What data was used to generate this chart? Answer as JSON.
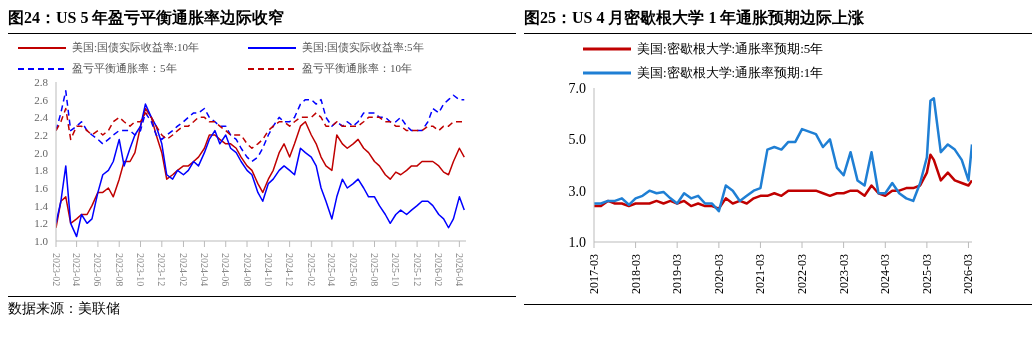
{
  "chart_data": [
    {
      "type": "line",
      "title": "图24：US 5 年盈亏平衡通胀率边际收窄",
      "legend": "top",
      "x": [
        "2023-02-01",
        "2023-02-15",
        "2023-03-01",
        "2023-03-15",
        "2023-04-01",
        "2023-04-15",
        "2023-05-01",
        "2023-05-15",
        "2023-06-01",
        "2023-06-15",
        "2023-07-01",
        "2023-07-15",
        "2023-08-01",
        "2023-08-15",
        "2023-09-01",
        "2023-09-15",
        "2023-10-01",
        "2023-10-15",
        "2023-11-01",
        "2023-11-15",
        "2023-12-01",
        "2023-12-15",
        "2024-01-01",
        "2024-01-15",
        "2024-02-01",
        "2024-02-15",
        "2024-03-01",
        "2024-03-15",
        "2024-04-01",
        "2024-04-15",
        "2024-05-01",
        "2024-05-15",
        "2024-06-01",
        "2024-06-15",
        "2024-07-01",
        "2024-07-15",
        "2024-08-01",
        "2024-08-15",
        "2024-09-01",
        "2024-09-15",
        "2024-10-01",
        "2024-10-15",
        "2024-11-01",
        "2024-11-15",
        "2024-12-01",
        "2024-12-15",
        "2025-01-01",
        "2025-01-15",
        "2025-02-01",
        "2025-02-15",
        "2025-03-01",
        "2025-03-15",
        "2025-04-01",
        "2025-04-15",
        "2025-05-01",
        "2025-05-15",
        "2025-06-01",
        "2025-06-15",
        "2025-07-01",
        "2025-07-15",
        "2025-08-01",
        "2025-08-15",
        "2025-09-01",
        "2025-09-15",
        "2025-10-01",
        "2025-10-15",
        "2025-11-01",
        "2025-11-15",
        "2025-12-01",
        "2025-12-15",
        "2026-01-01",
        "2026-01-15",
        "2026-02-01",
        "2026-02-15",
        "2026-03-01",
        "2026-03-15",
        "2026-04-01",
        "2026-04-15"
      ],
      "xlim": [
        "2023-02-01",
        "2026-04-20"
      ],
      "xticks": [
        {
          "value": "2023-02-01",
          "label": "2023-02"
        },
        {
          "value": "2023-04-01",
          "label": "2023-04"
        },
        {
          "value": "2023-06-01",
          "label": "2023-06"
        },
        {
          "value": "2023-08-01",
          "label": "2023-08"
        },
        {
          "value": "2023-10-01",
          "label": "2023-10"
        },
        {
          "value": "2023-12-01",
          "label": "2023-12"
        },
        {
          "value": "2024-02-01",
          "label": "2024-02"
        },
        {
          "value": "2024-04-01",
          "label": "2024-04"
        },
        {
          "value": "2024-06-01",
          "label": "2024-06"
        },
        {
          "value": "2024-08-01",
          "label": "2024-08"
        },
        {
          "value": "2024-10-01",
          "label": "2024-10"
        },
        {
          "value": "2024-12-01",
          "label": "2024-12"
        },
        {
          "value": "2025-02-01",
          "label": "2025-02"
        },
        {
          "value": "2025-04-01",
          "label": "2025-04"
        },
        {
          "value": "2025-06-01",
          "label": "2025-06"
        },
        {
          "value": "2025-08-01",
          "label": "2025-08"
        },
        {
          "value": "2025-10-01",
          "label": "2025-10"
        },
        {
          "value": "2025-12-01",
          "label": "2025-12"
        },
        {
          "value": "2026-02-01",
          "label": "2026-02"
        },
        {
          "value": "2026-04-01",
          "label": "2026-04"
        }
      ],
      "ylim": [
        1.0,
        2.8
      ],
      "yticks": [
        {
          "value": 1.0,
          "label": "1.0"
        },
        {
          "value": 1.2,
          "label": "1.2"
        },
        {
          "value": 1.4,
          "label": "1.4"
        },
        {
          "value": 1.6,
          "label": "1.6"
        },
        {
          "value": 1.8,
          "label": "1.8"
        },
        {
          "value": 2.0,
          "label": "2.0"
        },
        {
          "value": 2.2,
          "label": "2.2"
        },
        {
          "value": 2.4,
          "label": "2.4"
        },
        {
          "value": 2.6,
          "label": "2.6"
        },
        {
          "value": 2.8,
          "label": "2.8"
        }
      ],
      "series": [
        {
          "name": "美国:国债实际收益率:10年",
          "color": "#c00000",
          "line_style": "solid",
          "values": [
            1.15,
            1.45,
            1.5,
            1.2,
            1.25,
            1.3,
            1.3,
            1.4,
            1.55,
            1.55,
            1.6,
            1.5,
            1.7,
            1.9,
            1.9,
            2.0,
            2.3,
            2.5,
            2.4,
            2.2,
            2.0,
            1.7,
            1.75,
            1.8,
            1.85,
            1.85,
            1.9,
            1.95,
            2.05,
            2.2,
            2.2,
            2.15,
            2.1,
            2.1,
            2.05,
            1.95,
            1.85,
            1.8,
            1.65,
            1.55,
            1.7,
            1.8,
            2.0,
            2.1,
            1.95,
            2.1,
            2.3,
            2.35,
            2.2,
            2.1,
            1.95,
            1.85,
            1.8,
            2.2,
            2.1,
            2.05,
            2.1,
            2.15,
            2.05,
            2.0,
            1.9,
            1.85,
            1.75,
            1.7,
            1.78,
            1.75,
            1.8,
            1.85,
            1.85,
            1.9,
            1.9,
            1.9,
            1.85,
            1.78,
            1.75,
            1.9,
            2.05,
            1.95
          ]
        },
        {
          "name": "美国:国债实际收益率:5年",
          "color": "#0000ff",
          "line_style": "solid",
          "values": [
            1.2,
            1.45,
            1.85,
            1.2,
            1.05,
            1.3,
            1.2,
            1.25,
            1.55,
            1.75,
            1.8,
            1.9,
            2.15,
            1.85,
            2.05,
            2.2,
            2.3,
            2.55,
            2.4,
            2.3,
            2.1,
            1.75,
            1.7,
            1.8,
            1.75,
            1.8,
            1.9,
            1.85,
            2.0,
            2.15,
            2.25,
            2.1,
            2.2,
            2.05,
            2.0,
            1.9,
            1.8,
            1.75,
            1.55,
            1.45,
            1.65,
            1.7,
            1.8,
            1.85,
            1.8,
            1.75,
            2.05,
            2.0,
            1.95,
            1.85,
            1.6,
            1.45,
            1.25,
            1.5,
            1.7,
            1.6,
            1.65,
            1.7,
            1.6,
            1.5,
            1.5,
            1.4,
            1.3,
            1.2,
            1.3,
            1.35,
            1.3,
            1.35,
            1.4,
            1.45,
            1.45,
            1.4,
            1.3,
            1.25,
            1.15,
            1.25,
            1.5,
            1.35
          ]
        },
        {
          "name": "盈亏平衡通胀率：5年",
          "color": "#0000ff",
          "line_style": "dashed",
          "values": [
            2.25,
            2.45,
            2.7,
            2.25,
            2.3,
            2.35,
            2.25,
            2.2,
            2.15,
            2.1,
            2.15,
            2.2,
            2.25,
            2.25,
            2.25,
            2.2,
            2.25,
            2.45,
            2.35,
            2.2,
            2.15,
            2.2,
            2.25,
            2.3,
            2.35,
            2.4,
            2.45,
            2.45,
            2.5,
            2.4,
            2.35,
            2.3,
            2.3,
            2.2,
            2.15,
            2.05,
            1.95,
            1.9,
            1.95,
            2.05,
            2.2,
            2.3,
            2.4,
            2.35,
            2.35,
            2.4,
            2.55,
            2.6,
            2.6,
            2.55,
            2.6,
            2.4,
            2.3,
            2.35,
            2.3,
            2.35,
            2.3,
            2.35,
            2.45,
            2.45,
            2.45,
            2.4,
            2.4,
            2.35,
            2.35,
            2.4,
            2.3,
            2.25,
            2.25,
            2.25,
            2.35,
            2.5,
            2.45,
            2.55,
            2.6,
            2.65,
            2.6,
            2.6
          ]
        },
        {
          "name": "盈亏平衡通胀率：10年",
          "color": "#c00000",
          "line_style": "dashed",
          "values": [
            2.25,
            2.35,
            2.5,
            2.15,
            2.3,
            2.3,
            2.25,
            2.2,
            2.25,
            2.2,
            2.25,
            2.35,
            2.4,
            2.35,
            2.3,
            2.35,
            2.35,
            2.45,
            2.4,
            2.3,
            2.2,
            2.15,
            2.2,
            2.25,
            2.3,
            2.3,
            2.35,
            2.4,
            2.4,
            2.35,
            2.35,
            2.3,
            2.25,
            2.2,
            2.2,
            2.2,
            2.1,
            2.05,
            2.1,
            2.15,
            2.25,
            2.3,
            2.35,
            2.35,
            2.3,
            2.35,
            2.4,
            2.4,
            2.4,
            2.45,
            2.4,
            2.3,
            2.3,
            2.35,
            2.3,
            2.3,
            2.3,
            2.3,
            2.35,
            2.4,
            2.4,
            2.4,
            2.35,
            2.35,
            2.3,
            2.3,
            2.25,
            2.25,
            2.25,
            2.25,
            2.3,
            2.3,
            2.25,
            2.3,
            2.3,
            2.35,
            2.35,
            2.35
          ]
        }
      ],
      "annotations": [
        "数据来源：美联储"
      ]
    },
    {
      "type": "line",
      "title": "图25：US 4 月密歇根大学 1 年通胀预期边际上涨",
      "legend": "top",
      "x": [
        "2017-03",
        "2017-05",
        "2017-07",
        "2017-09",
        "2017-11",
        "2018-01",
        "2018-03",
        "2018-05",
        "2018-07",
        "2018-09",
        "2018-11",
        "2019-01",
        "2019-03",
        "2019-05",
        "2019-07",
        "2019-09",
        "2019-11",
        "2020-01",
        "2020-03",
        "2020-05",
        "2020-07",
        "2020-09",
        "2020-11",
        "2021-01",
        "2021-03",
        "2021-05",
        "2021-07",
        "2021-09",
        "2021-11",
        "2022-01",
        "2022-03",
        "2022-05",
        "2022-07",
        "2022-09",
        "2022-11",
        "2023-01",
        "2023-03",
        "2023-05",
        "2023-07",
        "2023-09",
        "2023-11",
        "2024-01",
        "2024-03",
        "2024-05",
        "2024-07",
        "2024-09",
        "2024-11",
        "2025-01",
        "2025-03",
        "2025-04",
        "2025-05",
        "2025-07",
        "2025-09",
        "2025-11",
        "2026-01",
        "2026-03",
        "2026-04"
      ],
      "xlim": [
        "2017-03",
        "2026-04"
      ],
      "xticks": [
        {
          "value": "2017-03",
          "label": "2017-03"
        },
        {
          "value": "2018-03",
          "label": "2018-03"
        },
        {
          "value": "2019-03",
          "label": "2019-03"
        },
        {
          "value": "2020-03",
          "label": "2020-03"
        },
        {
          "value": "2021-03",
          "label": "2021-03"
        },
        {
          "value": "2022-03",
          "label": "2022-03"
        },
        {
          "value": "2023-03",
          "label": "2023-03"
        },
        {
          "value": "2024-03",
          "label": "2024-03"
        },
        {
          "value": "2025-03",
          "label": "2025-03"
        },
        {
          "value": "2026-03",
          "label": "2026-03"
        }
      ],
      "ylim": [
        1.0,
        7.0
      ],
      "yticks": [
        {
          "value": 1.0,
          "label": "1.0"
        },
        {
          "value": 3.0,
          "label": "3.0"
        },
        {
          "value": 5.0,
          "label": "5.0"
        },
        {
          "value": 7.0,
          "label": "7.0"
        }
      ],
      "series": [
        {
          "name": "美国:密歇根大学:通胀率预期:5年",
          "color": "#c00000",
          "line_style": "solid",
          "values": [
            2.4,
            2.4,
            2.6,
            2.5,
            2.5,
            2.4,
            2.5,
            2.5,
            2.5,
            2.6,
            2.5,
            2.6,
            2.5,
            2.6,
            2.4,
            2.5,
            2.4,
            2.4,
            2.3,
            2.7,
            2.5,
            2.6,
            2.5,
            2.7,
            2.8,
            2.8,
            2.9,
            2.8,
            3.0,
            3.0,
            3.0,
            3.0,
            3.0,
            2.9,
            2.8,
            2.9,
            2.9,
            3.0,
            3.0,
            2.8,
            3.2,
            2.9,
            2.8,
            3.0,
            3.0,
            3.1,
            3.1,
            3.2,
            3.7,
            4.4,
            4.2,
            3.4,
            3.7,
            3.4,
            3.3,
            3.2,
            3.4
          ]
        },
        {
          "name": "美国:密歇根大学:通胀率预期:1年",
          "color": "#1f7fd4",
          "line_style": "solid",
          "values": [
            2.5,
            2.5,
            2.6,
            2.6,
            2.7,
            2.45,
            2.7,
            2.8,
            3.0,
            2.9,
            2.95,
            2.7,
            2.5,
            2.9,
            2.7,
            2.8,
            2.5,
            2.5,
            2.2,
            3.2,
            3.0,
            2.6,
            2.8,
            3.0,
            3.1,
            4.6,
            4.7,
            4.6,
            4.9,
            4.9,
            5.4,
            5.3,
            5.2,
            4.7,
            5.0,
            3.9,
            3.6,
            4.5,
            3.4,
            3.2,
            4.5,
            2.9,
            2.9,
            3.3,
            2.9,
            2.7,
            2.6,
            3.3,
            4.3,
            6.5,
            6.6,
            4.5,
            4.8,
            4.6,
            4.2,
            3.4,
            4.8
          ]
        }
      ]
    }
  ]
}
